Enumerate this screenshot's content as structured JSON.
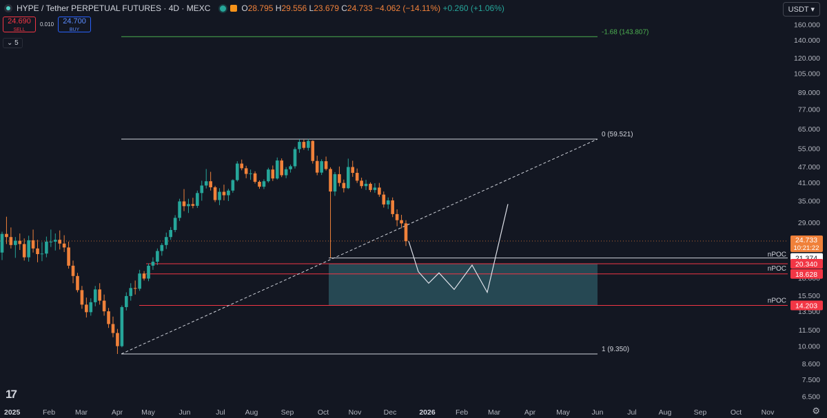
{
  "header": {
    "title": "HYPE / Tether PERPETUAL FUTURES · 4D · MEXC",
    "open_label": "O",
    "open": "28.795",
    "high_label": "H",
    "high": "29.556",
    "low_label": "L",
    "low": "23.679",
    "close_label": "C",
    "close": "24.733",
    "change": "−4.062 (−14.11%)",
    "extra_change": "+0.260 (+1.06%)"
  },
  "trade": {
    "sell_price": "24.690",
    "sell_label": "SELL",
    "spread": "0.010",
    "buy_price": "24.700",
    "buy_label": "BUY"
  },
  "indicators_toggle": "5",
  "currency_button": "USDT",
  "colors": {
    "background": "#131722",
    "up": "#26a69a",
    "down": "#f0813a",
    "grid_text": "#b2b5be",
    "level_red": "#f23645",
    "zone": "#2e5a64",
    "fib_green": "#4caf50"
  },
  "chart_data": {
    "type": "candlestick",
    "y_scale": "log",
    "y_ticks": [
      "160.000",
      "140.000",
      "120.000",
      "105.000",
      "89.000",
      "77.000",
      "65.000",
      "55.000",
      "47.000",
      "41.000",
      "35.000",
      "29.000",
      "25.000",
      "21.000",
      "18.000",
      "15.500",
      "13.500",
      "11.500",
      "10.000",
      "8.600",
      "7.500",
      "6.500"
    ],
    "x_ticks": [
      "2025",
      "Feb",
      "Mar",
      "Apr",
      "May",
      "Jun",
      "Jul",
      "Aug",
      "Sep",
      "Oct",
      "Nov",
      "Dec",
      "2026",
      "Feb",
      "Mar",
      "Apr",
      "May",
      "Jun",
      "Jul",
      "Aug",
      "Sep",
      "Oct",
      "Nov"
    ],
    "last_price": {
      "value": "24.733",
      "countdown": "10:21:22"
    },
    "price_labels": [
      {
        "value": "21.374",
        "style": "white"
      },
      {
        "value": "20.340",
        "style": "red"
      },
      {
        "value": "18.628",
        "style": "red"
      },
      {
        "value": "14.203",
        "style": "red"
      }
    ],
    "fib_levels": [
      {
        "label": "-1.68 (143.807)",
        "price": 143.807
      },
      {
        "label": "0 (59.521)",
        "price": 59.521
      },
      {
        "label": "1 (9.350)",
        "price": 9.35
      }
    ],
    "npoc_levels": [
      {
        "label": "nPOC",
        "price": 21.374
      },
      {
        "label": "nPOC",
        "price": 20.34
      },
      {
        "label": "nPOC",
        "price": 14.203
      }
    ],
    "demand_zone": {
      "top": 20.34,
      "bottom": 14.203,
      "start": "Oct",
      "end": "Jun"
    },
    "projection_path": [
      {
        "date": "Dec",
        "price": 24.7
      },
      {
        "date": "Dec",
        "price": 19.0
      },
      {
        "date": "Jan",
        "price": 17.2
      },
      {
        "date": "Jan",
        "price": 18.8
      },
      {
        "date": "Jan",
        "price": 16.3
      },
      {
        "date": "Feb",
        "price": 20.1
      },
      {
        "date": "Feb",
        "price": 15.9
      },
      {
        "date": "Mar",
        "price": 34.0
      }
    ],
    "ohlc": [
      [
        22.4,
        26.8,
        21.0,
        26.3
      ],
      [
        26.3,
        30.5,
        24.1,
        25.6
      ],
      [
        25.6,
        27.8,
        23.2,
        23.9
      ],
      [
        23.9,
        25.6,
        21.4,
        24.8
      ],
      [
        24.8,
        26.4,
        22.9,
        24.1
      ],
      [
        24.1,
        25.3,
        20.9,
        21.5
      ],
      [
        21.5,
        25.9,
        20.7,
        24.9
      ],
      [
        24.9,
        27.3,
        22.4,
        23.2
      ],
      [
        23.2,
        25.0,
        20.6,
        22.1
      ],
      [
        22.1,
        24.5,
        20.8,
        22.2
      ],
      [
        22.2,
        25.7,
        21.5,
        24.6
      ],
      [
        24.6,
        27.3,
        23.5,
        24.6
      ],
      [
        24.6,
        26.4,
        22.8,
        25.0
      ],
      [
        25.0,
        27.1,
        23.0,
        24.2
      ],
      [
        24.2,
        26.0,
        22.5,
        23.4
      ],
      [
        23.4,
        24.6,
        19.5,
        20.0
      ],
      [
        20.0,
        20.9,
        17.2,
        18.3
      ],
      [
        18.3,
        18.8,
        15.9,
        16.2
      ],
      [
        16.2,
        16.8,
        13.8,
        14.3
      ],
      [
        14.3,
        15.2,
        12.8,
        13.4
      ],
      [
        13.4,
        15.1,
        13.0,
        14.6
      ],
      [
        14.6,
        16.8,
        14.1,
        16.3
      ],
      [
        16.3,
        17.2,
        14.3,
        14.8
      ],
      [
        14.8,
        15.6,
        13.0,
        13.5
      ],
      [
        13.5,
        13.9,
        11.7,
        12.1
      ],
      [
        12.1,
        12.9,
        10.8,
        11.2
      ],
      [
        11.2,
        11.6,
        9.35,
        10.0
      ],
      [
        10.0,
        14.2,
        9.9,
        14.0
      ],
      [
        14.0,
        15.9,
        13.6,
        15.4
      ],
      [
        15.4,
        17.2,
        14.8,
        16.5
      ],
      [
        16.5,
        17.6,
        15.6,
        16.4
      ],
      [
        16.4,
        19.3,
        16.1,
        18.7
      ],
      [
        18.7,
        19.1,
        17.6,
        17.9
      ],
      [
        17.9,
        20.4,
        17.5,
        20.0
      ],
      [
        20.0,
        21.5,
        19.3,
        20.7
      ],
      [
        20.7,
        23.2,
        20.1,
        22.7
      ],
      [
        22.7,
        24.3,
        21.8,
        23.9
      ],
      [
        23.9,
        26.6,
        23.1,
        25.6
      ],
      [
        25.6,
        27.9,
        25.0,
        27.2
      ],
      [
        27.2,
        30.9,
        26.7,
        30.2
      ],
      [
        30.2,
        35.6,
        29.4,
        34.8
      ],
      [
        34.8,
        38.7,
        32.0,
        33.4
      ],
      [
        33.4,
        35.6,
        31.5,
        34.0
      ],
      [
        34.0,
        35.9,
        32.8,
        33.5
      ],
      [
        33.5,
        38.2,
        32.9,
        37.4
      ],
      [
        37.4,
        41.6,
        35.0,
        39.9
      ],
      [
        39.9,
        46.0,
        38.9,
        41.4
      ],
      [
        41.4,
        44.9,
        38.2,
        39.3
      ],
      [
        39.3,
        39.8,
        34.6,
        35.2
      ],
      [
        35.2,
        39.0,
        33.7,
        37.8
      ],
      [
        37.8,
        40.2,
        35.1,
        36.7
      ],
      [
        36.7,
        38.8,
        34.9,
        38.2
      ],
      [
        38.2,
        42.1,
        37.5,
        41.8
      ],
      [
        41.8,
        49.2,
        41.3,
        48.2
      ],
      [
        48.2,
        49.9,
        45.5,
        46.3
      ],
      [
        46.3,
        47.3,
        42.5,
        44.1
      ],
      [
        44.1,
        45.8,
        41.9,
        44.3
      ],
      [
        44.3,
        45.1,
        40.6,
        41.2
      ],
      [
        41.2,
        41.7,
        38.8,
        39.5
      ],
      [
        39.5,
        42.1,
        38.7,
        41.4
      ],
      [
        41.4,
        46.5,
        40.9,
        45.8
      ],
      [
        45.8,
        47.4,
        41.5,
        42.4
      ],
      [
        42.4,
        50.8,
        42.0,
        49.5
      ],
      [
        49.5,
        50.4,
        42.9,
        43.6
      ],
      [
        43.6,
        46.8,
        42.5,
        45.9
      ],
      [
        45.9,
        47.8,
        44.6,
        47.1
      ],
      [
        47.1,
        55.6,
        46.2,
        54.6
      ],
      [
        54.6,
        59.5,
        52.9,
        58.1
      ],
      [
        58.1,
        59.2,
        54.3,
        55.2
      ],
      [
        55.2,
        59.6,
        53.9,
        58.6
      ],
      [
        58.6,
        58.9,
        48.2,
        49.3
      ],
      [
        49.3,
        51.6,
        43.6,
        44.6
      ],
      [
        44.6,
        50.0,
        43.7,
        49.2
      ],
      [
        49.2,
        51.2,
        45.4,
        46.0
      ],
      [
        46.0,
        46.7,
        21.4,
        37.9
      ],
      [
        37.9,
        44.8,
        36.5,
        44.0
      ],
      [
        44.0,
        47.0,
        39.6,
        40.8
      ],
      [
        40.8,
        42.0,
        37.6,
        39.0
      ],
      [
        39.0,
        50.3,
        38.7,
        46.8
      ],
      [
        46.8,
        49.4,
        43.0,
        44.5
      ],
      [
        44.5,
        46.2,
        40.8,
        41.6
      ],
      [
        41.6,
        42.7,
        38.9,
        39.7
      ],
      [
        39.7,
        41.9,
        38.4,
        40.5
      ],
      [
        40.5,
        41.0,
        37.7,
        38.4
      ],
      [
        38.4,
        40.7,
        37.5,
        39.2
      ],
      [
        39.2,
        40.8,
        36.2,
        36.9
      ],
      [
        36.9,
        37.9,
        33.0,
        33.9
      ],
      [
        33.9,
        36.0,
        32.6,
        35.1
      ],
      [
        35.1,
        36.0,
        30.4,
        31.2
      ],
      [
        31.2,
        32.5,
        28.1,
        29.6
      ],
      [
        29.6,
        31.0,
        27.6,
        28.8
      ],
      [
        28.8,
        29.6,
        23.7,
        24.7
      ]
    ]
  }
}
